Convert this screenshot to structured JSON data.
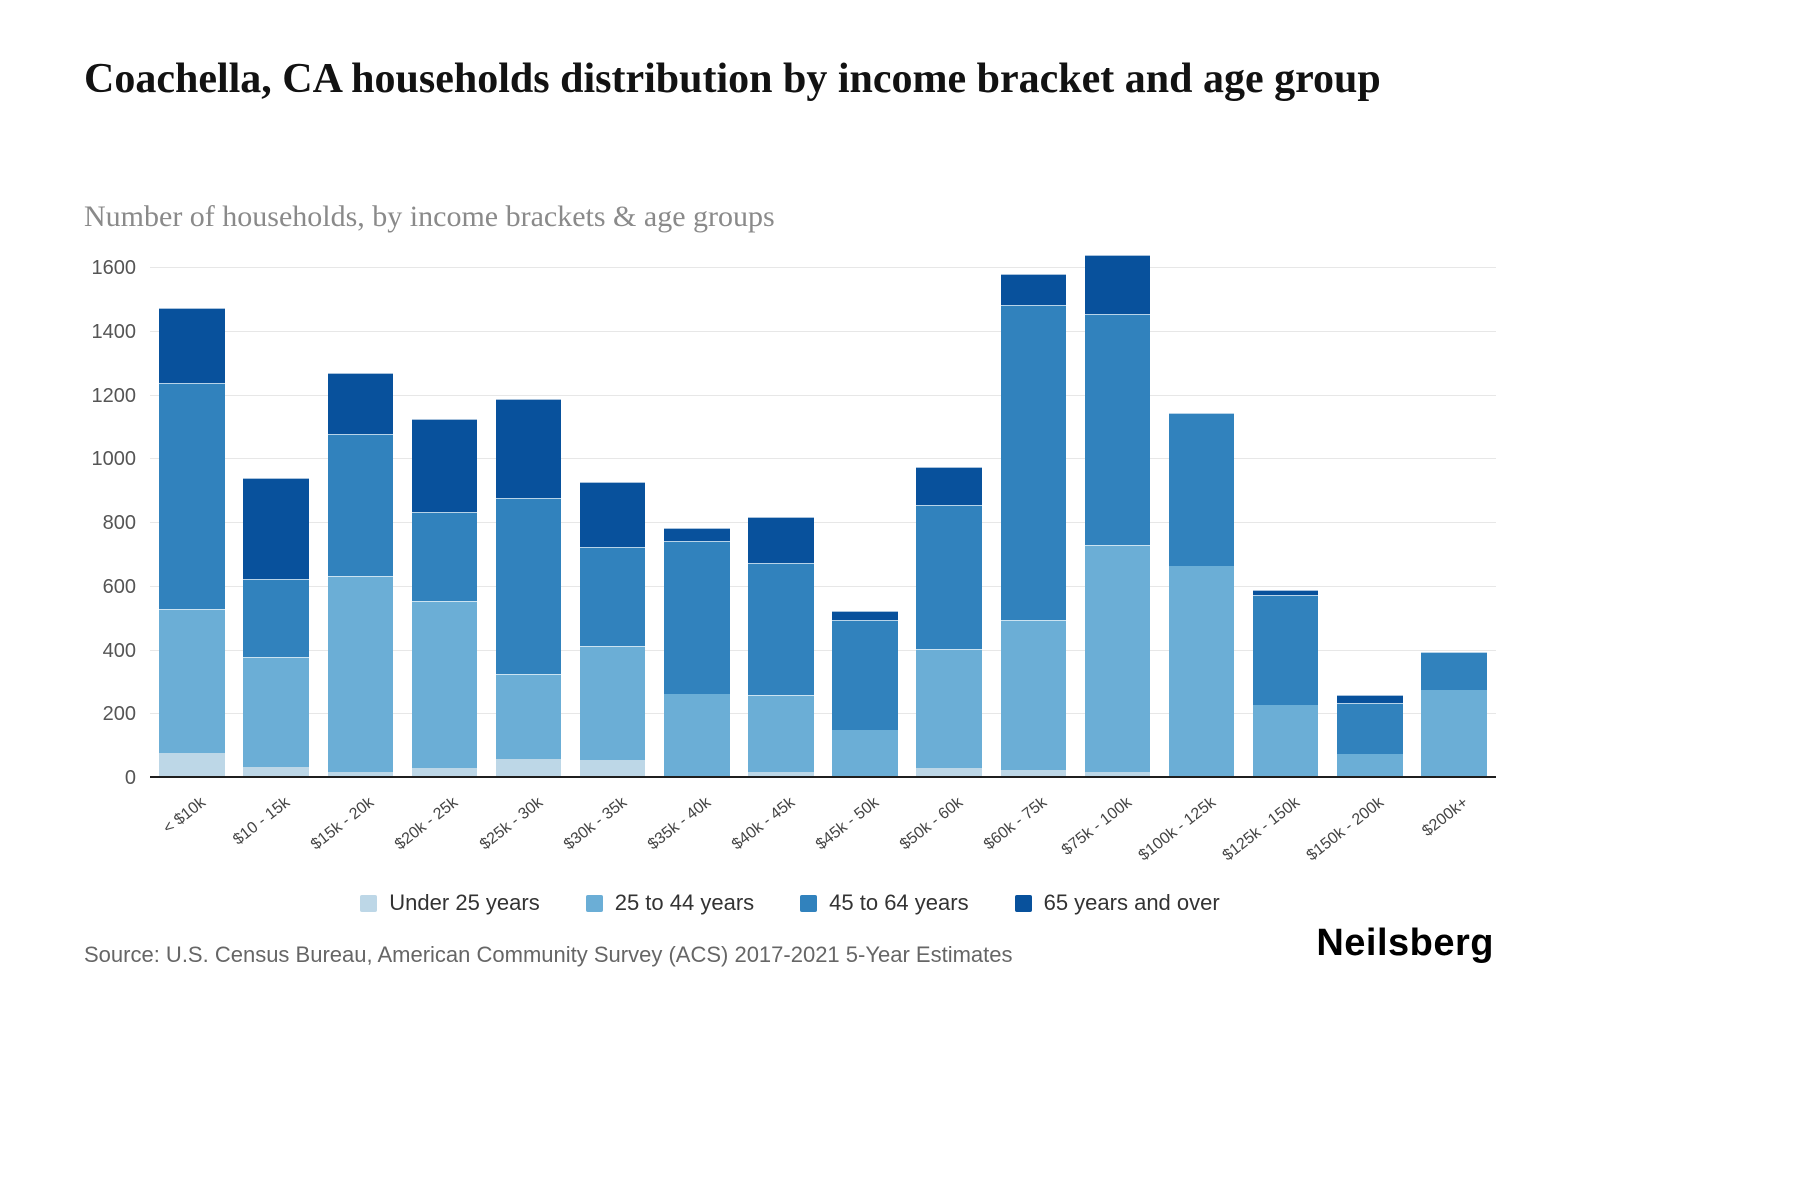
{
  "page": {
    "title": "Coachella, CA households distribution by income bracket and age group",
    "subtitle": "Number of households, by income brackets & age groups",
    "source": "Source: U.S. Census Bureau, American Community Survey (ACS) 2017-2021 5-Year Estimates",
    "logo_text": "Neilsberg"
  },
  "chart_data": {
    "type": "bar",
    "stacked": true,
    "title": "Coachella, CA households distribution by income bracket and age group",
    "subtitle": "Number of households, by income brackets & age groups",
    "xlabel": "",
    "ylabel": "",
    "ylim": [
      0,
      1600
    ],
    "yticks": [
      0,
      200,
      400,
      600,
      800,
      1000,
      1200,
      1400,
      1600
    ],
    "grid": true,
    "legend_position": "bottom",
    "categories": [
      "< $10k",
      "$10 - 15k",
      "$15k - 20k",
      "$20k - 25k",
      "$25k - 30k",
      "$30k - 35k",
      "$35k - 40k",
      "$40k - 45k",
      "$45k - 50k",
      "$50k - 60k",
      "$60k - 75k",
      "$75k - 100k",
      "$100k - 125k",
      "$125k - 150k",
      "$150k - 200k",
      "$200k+"
    ],
    "series": [
      {
        "name": "Under 25 years",
        "color": "#bdd7e7",
        "values": [
          80,
          35,
          20,
          30,
          60,
          55,
          0,
          20,
          0,
          30,
          25,
          20,
          0,
          0,
          0,
          0
        ]
      },
      {
        "name": "25 to 44 years",
        "color": "#6baed6",
        "values": [
          450,
          345,
          615,
          525,
          265,
          360,
          265,
          240,
          150,
          375,
          470,
          710,
          665,
          230,
          75,
          275
        ]
      },
      {
        "name": "45 to 64 years",
        "color": "#3182bd",
        "values": [
          710,
          245,
          445,
          280,
          555,
          310,
          480,
          415,
          345,
          450,
          990,
          725,
          480,
          345,
          160,
          120
        ]
      },
      {
        "name": "65 years and over",
        "color": "#08519c",
        "values": [
          235,
          315,
          190,
          290,
          310,
          205,
          40,
          145,
          30,
          120,
          95,
          185,
          0,
          15,
          25,
          0
        ]
      }
    ],
    "totals": [
      1475,
      940,
      1270,
      1125,
      1190,
      930,
      785,
      820,
      525,
      975,
      1580,
      1640,
      1145,
      590,
      260,
      395
    ]
  }
}
